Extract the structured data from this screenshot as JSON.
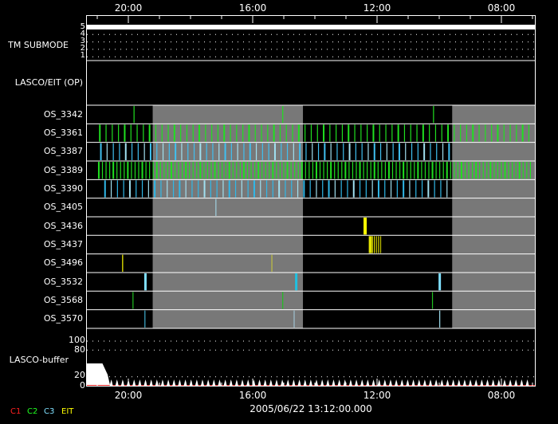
{
  "chart_data": {
    "type": "timeline",
    "x_axis": {
      "ticks": [
        "20:00",
        "16:00",
        "12:00",
        "08:00"
      ],
      "range": [
        "21:20",
        "06:55"
      ],
      "direction": "time decreasing left to right"
    },
    "date_label": "2005/06/22 13:12:00.000",
    "legend": [
      {
        "label": "C1",
        "color": "#ff2020"
      },
      {
        "label": "C2",
        "color": "#20ff20"
      },
      {
        "label": "C3",
        "color": "#80e0ff"
      },
      {
        "label": "EIT",
        "color": "#ffff00"
      }
    ],
    "tm_submode": {
      "label": "TM SUBMODE",
      "levels": [
        "5",
        "4",
        "3",
        "2",
        "1"
      ],
      "value": 5
    },
    "lasco_eit_op": {
      "label": "LASCO/EIT (OP)"
    },
    "shaded_intervals": [
      [
        "19:13",
        "14:23"
      ],
      [
        "09:35",
        "06:55"
      ]
    ],
    "rows": [
      {
        "label": "OS_3342",
        "events": [
          {
            "t": "19:49",
            "c": "#20e020"
          },
          {
            "t": "15:02",
            "c": "#20e020"
          },
          {
            "t": "10:11",
            "c": "#20e020"
          }
        ]
      },
      {
        "label": "OS_3361",
        "periodic": {
          "from": "20:55",
          "to": "07:00",
          "every_min": 12,
          "c": "#20e020"
        }
      },
      {
        "label": "OS_3387",
        "periodic": {
          "from": "20:53",
          "to": "09:38",
          "every_min": 12,
          "c": "#40c0f0"
        }
      },
      {
        "label": "OS_3389",
        "periodic": {
          "from": "20:57",
          "to": "07:00",
          "every_min": 7,
          "c": "#20e020"
        }
      },
      {
        "label": "OS_3390",
        "periodic": {
          "from": "20:45",
          "to": "09:38",
          "every_min": 12,
          "c": "#30b8e8"
        }
      },
      {
        "label": "OS_3405",
        "events": [
          {
            "t": "17:11",
            "c": "#a0d0e0"
          }
        ]
      },
      {
        "label": "OS_3436",
        "events": [
          {
            "t": "12:23",
            "c": "#ffff00",
            "w": 4
          }
        ]
      },
      {
        "label": "OS_3437",
        "events": [
          {
            "t": "12:15",
            "c": "#ffff00"
          },
          {
            "t": "12:13",
            "c": "#ffff00"
          },
          {
            "t": "12:11",
            "c": "#e0e000"
          },
          {
            "t": "12:09",
            "c": "#e0e000"
          },
          {
            "t": "12:05",
            "c": "#e0e000"
          },
          {
            "t": "12:01",
            "c": "#c0c000"
          },
          {
            "t": "11:57",
            "c": "#e0e000"
          },
          {
            "t": "11:53",
            "c": "#c0c000"
          }
        ]
      },
      {
        "label": "OS_3496",
        "events": [
          {
            "t": "20:11",
            "c": "#ffff00"
          },
          {
            "t": "15:23",
            "c": "#c0c040"
          }
        ]
      },
      {
        "label": "OS_3532",
        "events": [
          {
            "t": "19:27",
            "c": "#80e0ff",
            "w": 3
          },
          {
            "t": "14:36",
            "c": "#20c0e0",
            "w": 3
          },
          {
            "t": "09:59",
            "c": "#80e0ff",
            "w": 3
          }
        ]
      },
      {
        "label": "OS_3568",
        "events": [
          {
            "t": "19:51",
            "c": "#20c020"
          },
          {
            "t": "15:02",
            "c": "#20c020"
          },
          {
            "t": "10:13",
            "c": "#20c020"
          }
        ]
      },
      {
        "label": "OS_3570",
        "events": [
          {
            "t": "19:28",
            "c": "#40b0d0"
          },
          {
            "t": "14:40",
            "c": "#a0c0d0"
          },
          {
            "t": "09:59",
            "c": "#a0e0f0"
          }
        ]
      }
    ],
    "buffer": {
      "label": "LASCO-buffer",
      "y_ticks": [
        "100",
        "80",
        "20",
        "0"
      ],
      "ylim": [
        0,
        100
      ],
      "initial": [
        [
          "21:20",
          50
        ],
        [
          "20:50",
          50
        ],
        [
          "20:40",
          25
        ],
        [
          "20:35",
          0
        ]
      ],
      "spikes": {
        "from": "20:33",
        "to": "07:00",
        "every_min": 11,
        "value": 14
      }
    }
  }
}
